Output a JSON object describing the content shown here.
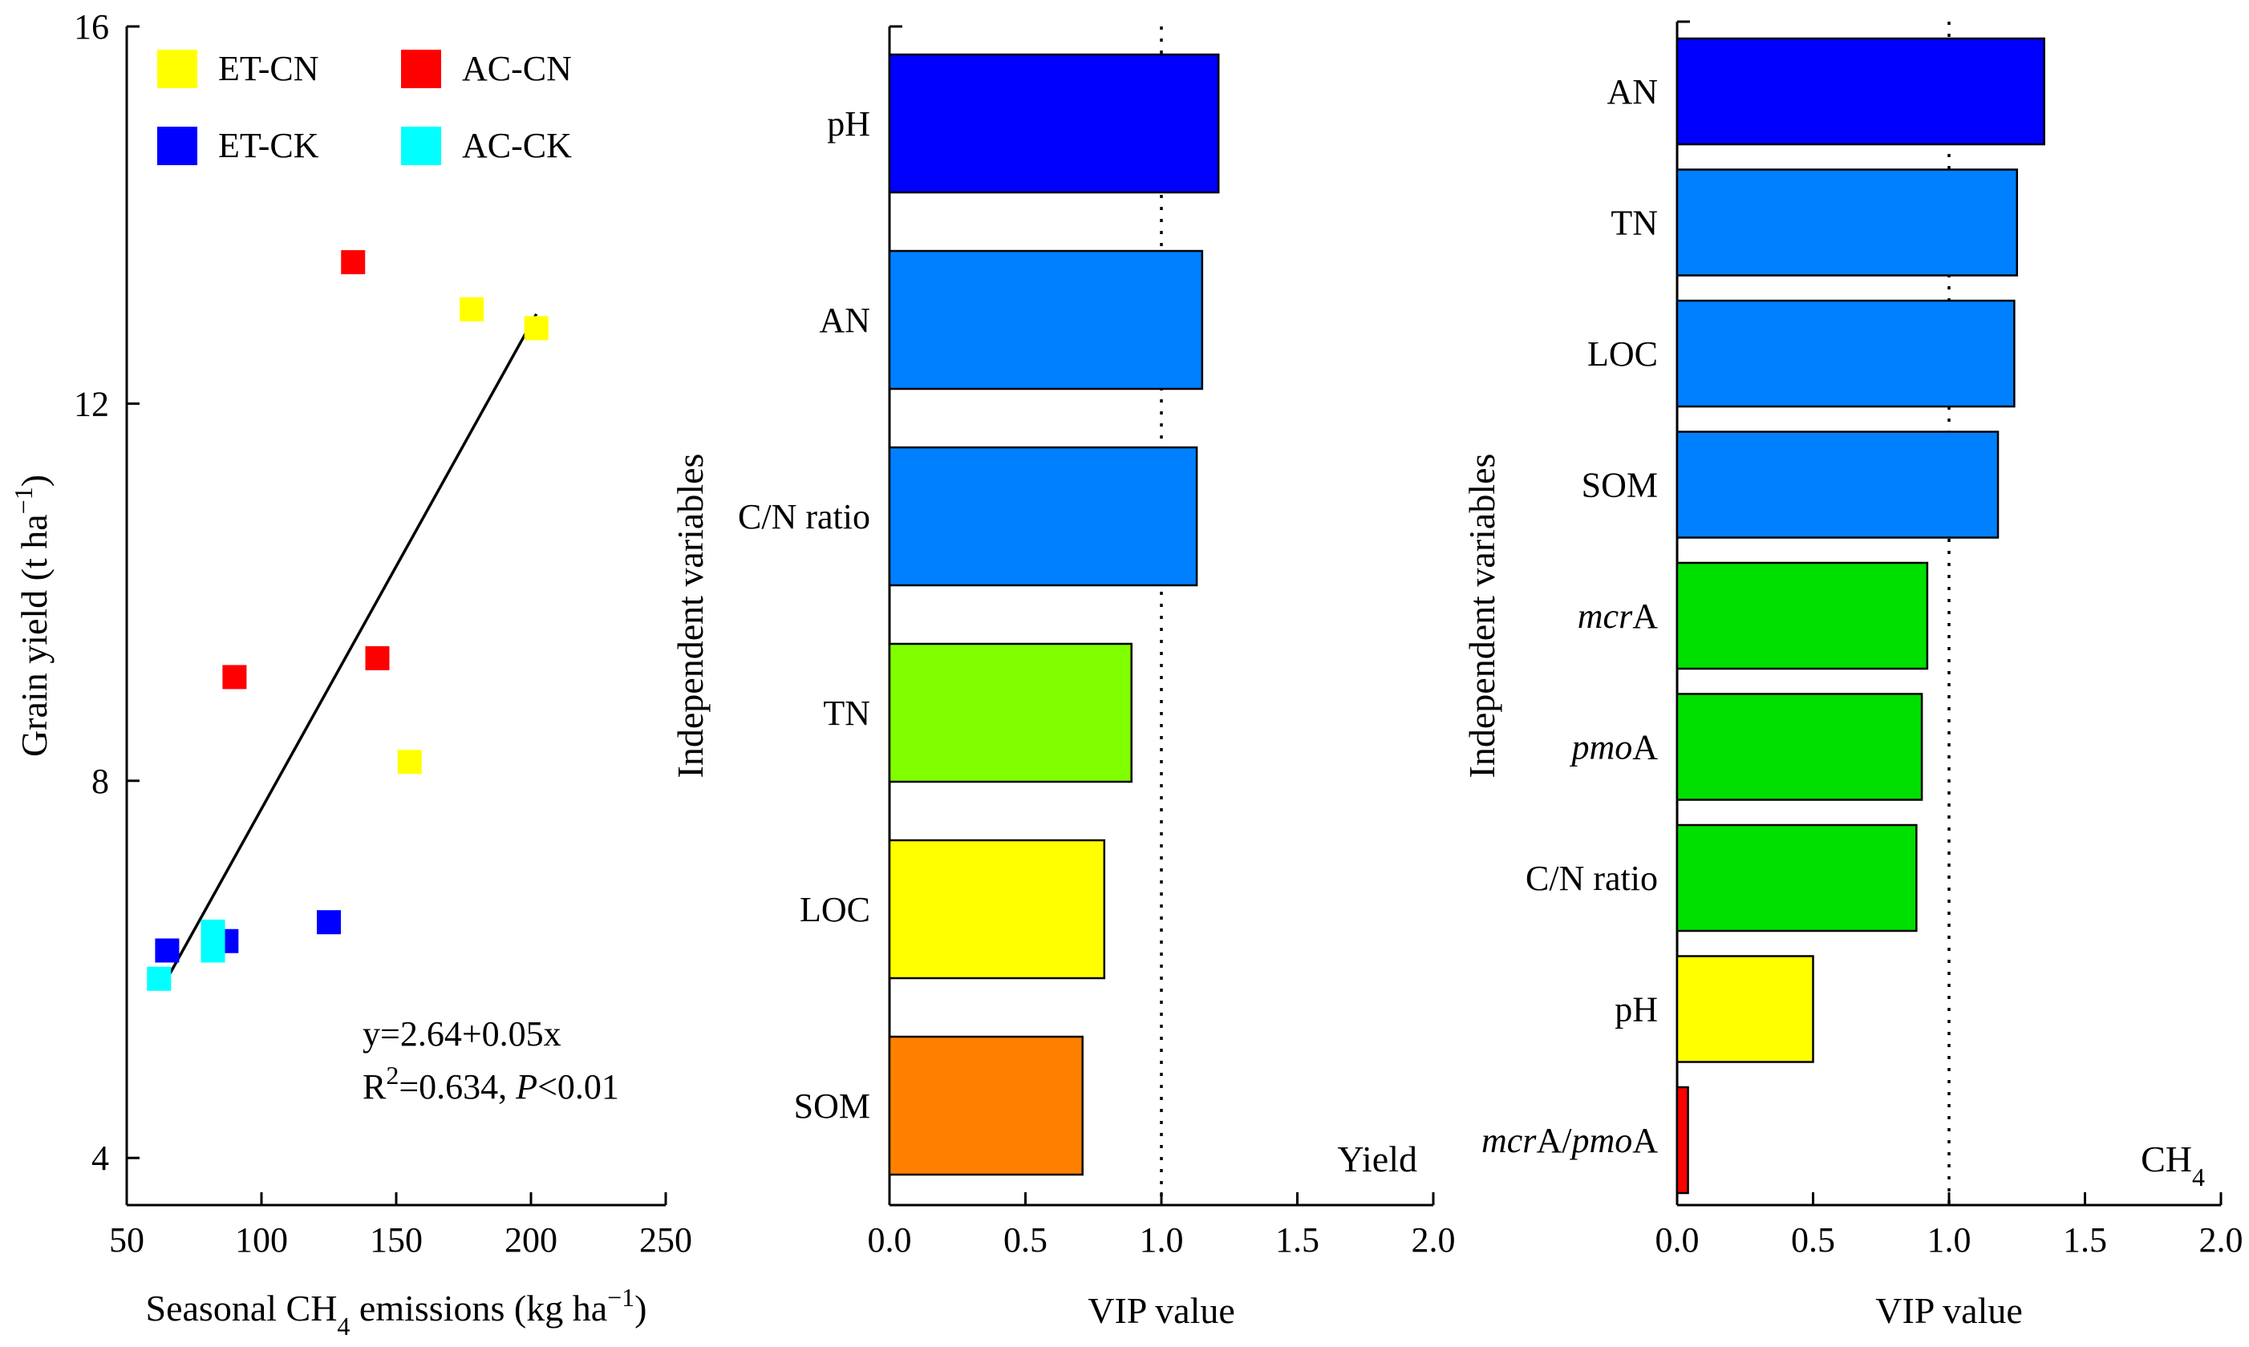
{
  "chart_data": [
    {
      "type": "scatter",
      "xlabel": "Seasonal CH4 emissions (kg ha−1)",
      "xlabel_parts": {
        "pre": "Seasonal CH",
        "sub": "4",
        "mid": " emissions (kg ha",
        "sup": "−1",
        "post": ")"
      },
      "ylabel": "Grain yield (t ha−1)",
      "ylabel_parts": {
        "pre": "Grain yield (t ha",
        "sup": "−1",
        "post": ")"
      },
      "xlim": [
        50,
        250
      ],
      "ylim": [
        3.5,
        16
      ],
      "xticks": [
        50,
        100,
        150,
        200,
        250
      ],
      "yticks": [
        4,
        8,
        12,
        16
      ],
      "legend_position": "top-left",
      "series": [
        {
          "name": "ET-CN",
          "color": "#ffff00",
          "points": [
            [
              178,
              13.0
            ],
            [
              202,
              12.8
            ],
            [
              155,
              8.2
            ]
          ]
        },
        {
          "name": "AC-CN",
          "color": "#ff0000",
          "points": [
            [
              134,
              13.5
            ],
            [
              90,
              9.1
            ],
            [
              143,
              9.3
            ]
          ]
        },
        {
          "name": "ET-CK",
          "color": "#0000ff",
          "points": [
            [
              65,
              6.2
            ],
            [
              87,
              6.3
            ],
            [
              125,
              6.5
            ]
          ]
        },
        {
          "name": "AC-CK",
          "color": "#00ffff",
          "points": [
            [
              62,
              5.9
            ],
            [
              82,
              6.4
            ],
            [
              82,
              6.2
            ]
          ]
        }
      ],
      "fit": {
        "x_range": [
          64,
          202
        ],
        "y_range": [
          5.85,
          12.95
        ]
      },
      "equation": "y=2.64+0.05x",
      "r2_parts": {
        "pre": "R",
        "sup": "2",
        "mid": "=0.634, ",
        "p_italic": "P",
        "post": "<0.01"
      }
    },
    {
      "type": "bar",
      "orientation": "horizontal",
      "xlabel": "VIP value",
      "ylabel": "Independent variables",
      "xlim": [
        0,
        2.0
      ],
      "xticks": [
        "0.0",
        "0.5",
        "1.0",
        "1.5",
        "2.0"
      ],
      "threshold": 1.0,
      "corner_label": "Yield",
      "categories": [
        "pH",
        "AN",
        "C/N ratio",
        "TN",
        "LOC",
        "SOM"
      ],
      "values": [
        1.21,
        1.15,
        1.13,
        0.89,
        0.79,
        0.71
      ],
      "colors": [
        "#0000ff",
        "#0080ff",
        "#0080ff",
        "#80ff00",
        "#ffff00",
        "#ff8000"
      ]
    },
    {
      "type": "bar",
      "orientation": "horizontal",
      "xlabel": "VIP value",
      "ylabel": "Independent variables",
      "xlim": [
        0,
        2.0
      ],
      "xticks": [
        "0.0",
        "0.5",
        "1.0",
        "1.5",
        "2.0"
      ],
      "threshold": 1.0,
      "corner_label": "CH4",
      "corner_parts": {
        "pre": "CH",
        "sub": "4"
      },
      "categories": [
        "AN",
        "TN",
        "LOC",
        "SOM",
        "mcrA",
        "pmoA",
        "C/N ratio",
        "pH",
        "mcrA/pmoA"
      ],
      "category_parts": [
        [
          {
            "t": "AN"
          }
        ],
        [
          {
            "t": "TN"
          }
        ],
        [
          {
            "t": "LOC"
          }
        ],
        [
          {
            "t": "SOM"
          }
        ],
        [
          {
            "t": "mcr",
            "i": true
          },
          {
            "t": "A"
          }
        ],
        [
          {
            "t": "pmo",
            "i": true
          },
          {
            "t": "A"
          }
        ],
        [
          {
            "t": "C/N ratio"
          }
        ],
        [
          {
            "t": "pH"
          }
        ],
        [
          {
            "t": "mcr",
            "i": true
          },
          {
            "t": "A/"
          },
          {
            "t": "pmo",
            "i": true
          },
          {
            "t": "A"
          }
        ]
      ],
      "values": [
        1.35,
        1.25,
        1.24,
        1.18,
        0.92,
        0.9,
        0.88,
        0.5,
        0.04
      ],
      "colors": [
        "#0000ff",
        "#0080ff",
        "#0080ff",
        "#0080ff",
        "#00e000",
        "#00e000",
        "#00e000",
        "#ffff00",
        "#ff0000"
      ]
    }
  ]
}
